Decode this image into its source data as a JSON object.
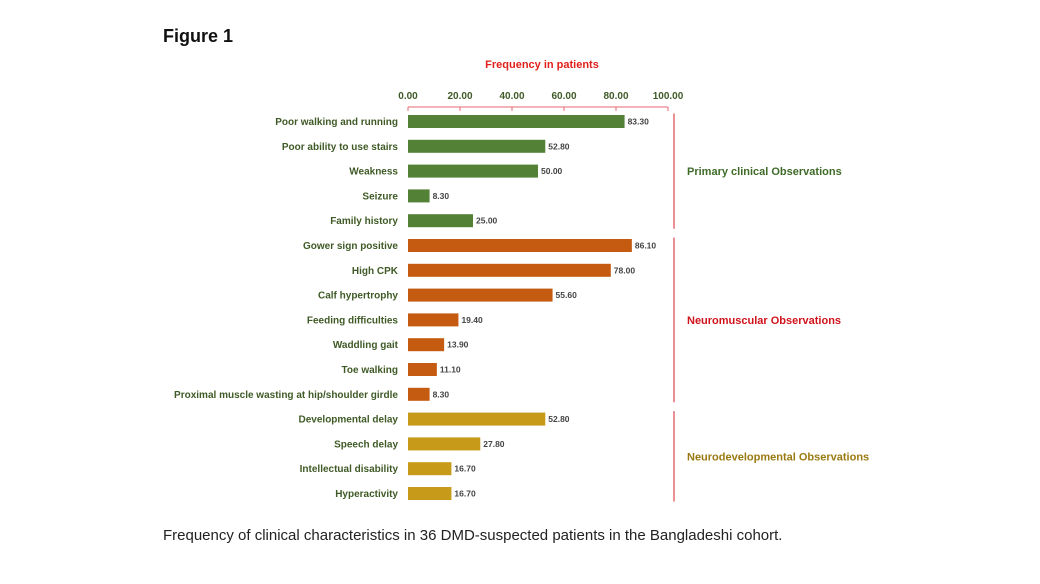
{
  "figure_title": "Figure 1",
  "caption": "Frequency of clinical characteristics in 36 DMD-suspected patients in the Bangladeshi cohort.",
  "chart_data": {
    "type": "bar",
    "orientation": "horizontal",
    "title": "Frequency in patients",
    "xlim": [
      0,
      100
    ],
    "xticks": [
      "0.00",
      "20.00",
      "40.00",
      "60.00",
      "80.00",
      "100.00"
    ],
    "xtick_values": [
      0,
      20,
      40,
      60,
      80,
      100
    ],
    "axis_position": "top",
    "grid": false,
    "colors": {
      "title": "#e0201c",
      "axis": "#e56a70",
      "label": "#3f5a26",
      "value": "#444444"
    },
    "groups": [
      {
        "name": "Primary clinical Observations",
        "color": "#538135",
        "label_color": "#3f6a28",
        "categories": [
          "Poor walking and running",
          "Poor ability to use stairs",
          "Weakness",
          "Seizure",
          "Family history"
        ],
        "values": [
          83.3,
          52.8,
          50.0,
          8.3,
          25.0
        ],
        "value_labels": [
          "83.30",
          "52.80",
          "50.00",
          "8.30",
          "25.00"
        ]
      },
      {
        "name": "Neuromuscular Observations",
        "color": "#c55a11",
        "label_color": "#d0121b",
        "categories": [
          "Gower sign positive",
          "High CPK",
          "Calf hypertrophy",
          "Feeding difficulties",
          "Waddling gait",
          "Toe walking",
          "Proximal muscle wasting at hip/shoulder girdle"
        ],
        "values": [
          86.1,
          78.0,
          55.6,
          19.4,
          13.9,
          11.1,
          8.3
        ],
        "value_labels": [
          "86.10",
          "78.00",
          "55.60",
          "19.40",
          "13.90",
          "11.10",
          "8.30"
        ]
      },
      {
        "name": "Neurodevelopmental Observations",
        "color": "#c89a1a",
        "label_color": "#9a7a10",
        "categories": [
          "Developmental delay",
          "Speech delay",
          "Intellectual disability",
          "Hyperactivity"
        ],
        "values": [
          52.8,
          27.8,
          16.7,
          16.7
        ],
        "value_labels": [
          "52.80",
          "27.80",
          "16.70",
          "16.70"
        ]
      }
    ]
  }
}
